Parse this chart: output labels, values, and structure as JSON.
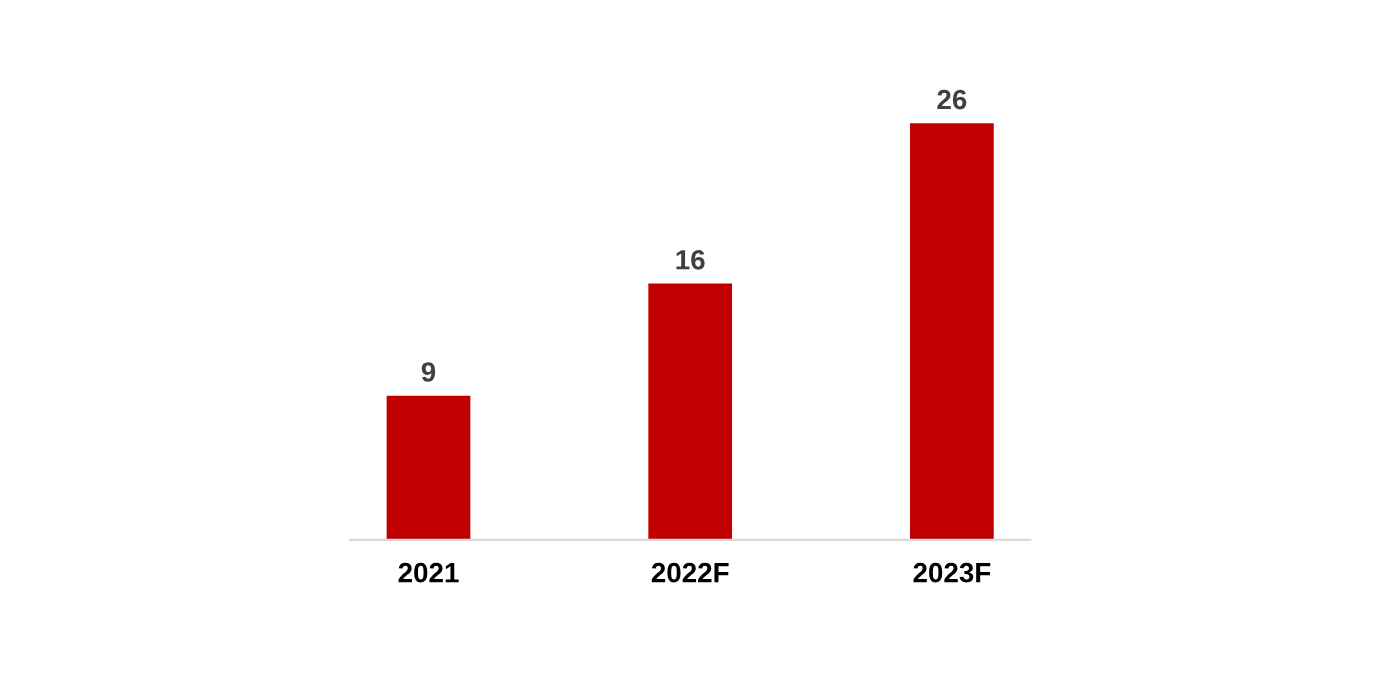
{
  "chart_data": {
    "type": "bar",
    "categories": [
      "2021",
      "2022F",
      "2023F"
    ],
    "values": [
      9,
      16,
      26
    ],
    "color": "#c00000",
    "data_labels": true,
    "grid": false,
    "legend": false
  }
}
